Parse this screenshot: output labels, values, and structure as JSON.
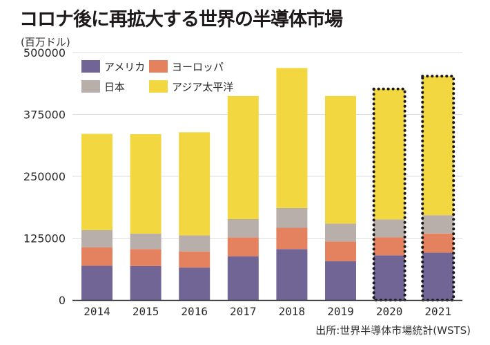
{
  "chart_data": {
    "type": "bar",
    "stacked": true,
    "title": "コロナ後に再拡大する世界の半導体市場",
    "ylabel": "(百万ドル)",
    "xlabel": "",
    "ylim": [
      0,
      500000
    ],
    "yticks": [
      0,
      125000,
      250000,
      375000,
      500000
    ],
    "ytick_labels": [
      "0",
      "125000",
      "250000",
      "375000",
      "500000"
    ],
    "grid": true,
    "legend_position": "top-left",
    "categories": [
      "2014",
      "2015",
      "2016",
      "2017",
      "2018",
      "2019",
      "2020",
      "2021"
    ],
    "highlighted_categories": [
      "2020",
      "2021"
    ],
    "highlight_note": "dotted outline (forecast)",
    "series": [
      {
        "name": "アメリカ",
        "color": "#716596",
        "values": [
          69233,
          68738,
          65537,
          88494,
          102997,
          78619,
          90436,
          95883
        ]
      },
      {
        "name": "ヨーロッパ",
        "color": "#e4815f",
        "values": [
          37424,
          34258,
          32707,
          38311,
          42957,
          39816,
          36483,
          38535
        ]
      },
      {
        "name": "日本",
        "color": "#b8afab",
        "values": [
          34852,
          31102,
          32292,
          36595,
          39961,
          35993,
          36009,
          37072
        ]
      },
      {
        "name": "アジア太平洋",
        "color": "#f2d740",
        "values": [
          194334,
          201071,
          208395,
          248821,
          282863,
          257879,
          263540,
          280839
        ]
      }
    ],
    "source": "出所:世界半導体市場統計(WSTS)"
  },
  "legend": [
    {
      "label": "アメリカ",
      "color": "#716596"
    },
    {
      "label": "ヨーロッパ",
      "color": "#e4815f"
    },
    {
      "label": "日本",
      "color": "#b8afab"
    },
    {
      "label": "アジア太平洋",
      "color": "#f2d740"
    }
  ]
}
